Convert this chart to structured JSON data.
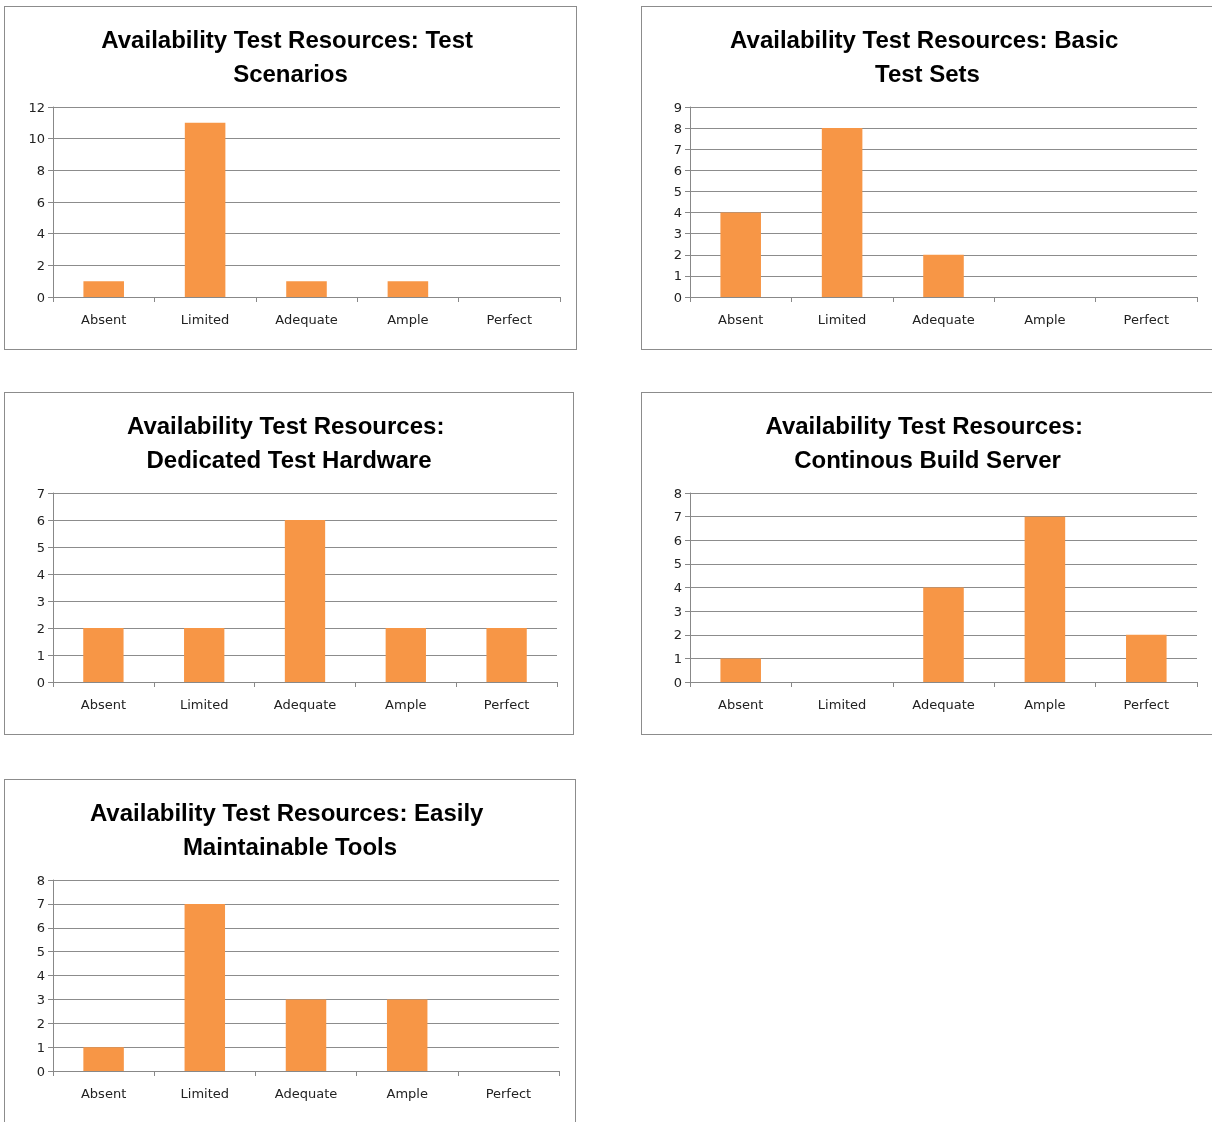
{
  "chart_data": [
    {
      "type": "bar",
      "title": "Availability Test Resources: Test Scenarios",
      "categories": [
        "Absent",
        "Limited",
        "Adequate",
        "Ample",
        "Perfect"
      ],
      "values": [
        1,
        11,
        1,
        1,
        0
      ],
      "color": "#f79646",
      "ylim": [
        0,
        12
      ],
      "yticks": [
        0,
        2,
        4,
        6,
        8,
        10,
        12
      ],
      "grid": "y"
    },
    {
      "type": "bar",
      "title": "Availability Test Resources: Basic Test Sets",
      "categories": [
        "Absent",
        "Limited",
        "Adequate",
        "Ample",
        "Perfect"
      ],
      "values": [
        4,
        8,
        2,
        0,
        0
      ],
      "color": "#f79646",
      "ylim": [
        0,
        9
      ],
      "yticks": [
        0,
        1,
        2,
        3,
        4,
        5,
        6,
        7,
        8,
        9
      ],
      "grid": "y"
    },
    {
      "type": "bar",
      "title": "Availability Test Resources: Dedicated Test Hardware",
      "categories": [
        "Absent",
        "Limited",
        "Adequate",
        "Ample",
        "Perfect"
      ],
      "values": [
        2,
        2,
        6,
        2,
        2
      ],
      "color": "#f79646",
      "ylim": [
        0,
        7
      ],
      "yticks": [
        0,
        1,
        2,
        3,
        4,
        5,
        6,
        7
      ],
      "grid": "y"
    },
    {
      "type": "bar",
      "title": "Availability Test Resources: Continous Build Server",
      "categories": [
        "Absent",
        "Limited",
        "Adequate",
        "Ample",
        "Perfect"
      ],
      "values": [
        1,
        0,
        4,
        7,
        2
      ],
      "color": "#f79646",
      "ylim": [
        0,
        8
      ],
      "yticks": [
        0,
        1,
        2,
        3,
        4,
        5,
        6,
        7,
        8
      ],
      "grid": "y"
    },
    {
      "type": "bar",
      "title": "Availability Test Resources: Easily Maintainable Tools",
      "categories": [
        "Absent",
        "Limited",
        "Adequate",
        "Ample",
        "Perfect"
      ],
      "values": [
        1,
        7,
        3,
        3,
        0
      ],
      "color": "#f79646",
      "ylim": [
        0,
        8
      ],
      "yticks": [
        0,
        1,
        2,
        3,
        4,
        5,
        6,
        7,
        8
      ],
      "grid": "y"
    }
  ]
}
